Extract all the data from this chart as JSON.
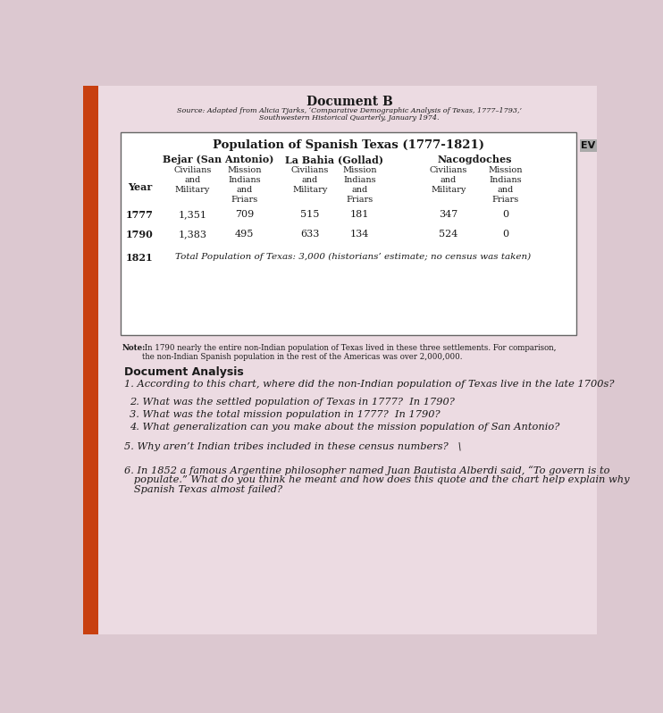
{
  "title": "Document B",
  "source_line1": "Source: Adapted from Alicia Tjarks, ‘Comparative Demographic Analysis of Texas, 1777–1793,’",
  "source_line2": "Southwestern Historical Quarterly, January 1974.",
  "table_title": "Population of Spanish Texas (1777-1821)",
  "col_group1": "Bejar (San Antonio)",
  "col_group2": "La Bahia (Gollad)",
  "col_group3": "Nacogdoches",
  "year_col": "Year",
  "rows": [
    {
      "year": "1777",
      "bej_civ": "1,351",
      "bej_mis": "709",
      "lab_civ": "515",
      "lab_mis": "181",
      "nac_civ": "347",
      "nac_mis": "0"
    },
    {
      "year": "1790",
      "bej_civ": "1,383",
      "bej_mis": "495",
      "lab_civ": "633",
      "lab_mis": "134",
      "nac_civ": "524",
      "nac_mis": "0"
    },
    {
      "year": "1821",
      "note": "Total Population of Texas: 3,000 (historians’ estimate; no census was taken)"
    }
  ],
  "note_bold": "Note:",
  "note_rest": " In 1790 nearly the entire non-Indian population of Texas lived in these three settlements. For comparison,\nthe non-Indian Spanish population in the rest of the Americas was over 2,000,000.",
  "ev_label": "EV",
  "doc_analysis_title": "Document Analysis",
  "q1": "1. According to this chart, where did the non-Indian population of Texas live in the late 1700s?",
  "q2": "2. What was the settled population of Texas in 1777?  In 1790?",
  "q3": "3. What was the total mission population in 1777?  In 1790?",
  "q4": "4. What generalization can you make about the mission population of San Antonio?",
  "q5": "5. Why aren’t Indian tribes included in these census numbers?   \\",
  "q6a": "6. In 1852 a famous Argentine philosopher named Juan Bautista Alberdi said, “To govern is to",
  "q6b": "   populate.” What do you think he meant and how does this quote and the chart help explain why",
  "q6c": "   Spanish Texas almost failed?",
  "bg_color": "#dcc8d0",
  "page_color": "#ecdbe2",
  "orange_color": "#c84010",
  "table_border": "#666666",
  "text_dark": "#1a1a1a",
  "text_mid": "#2a2020"
}
